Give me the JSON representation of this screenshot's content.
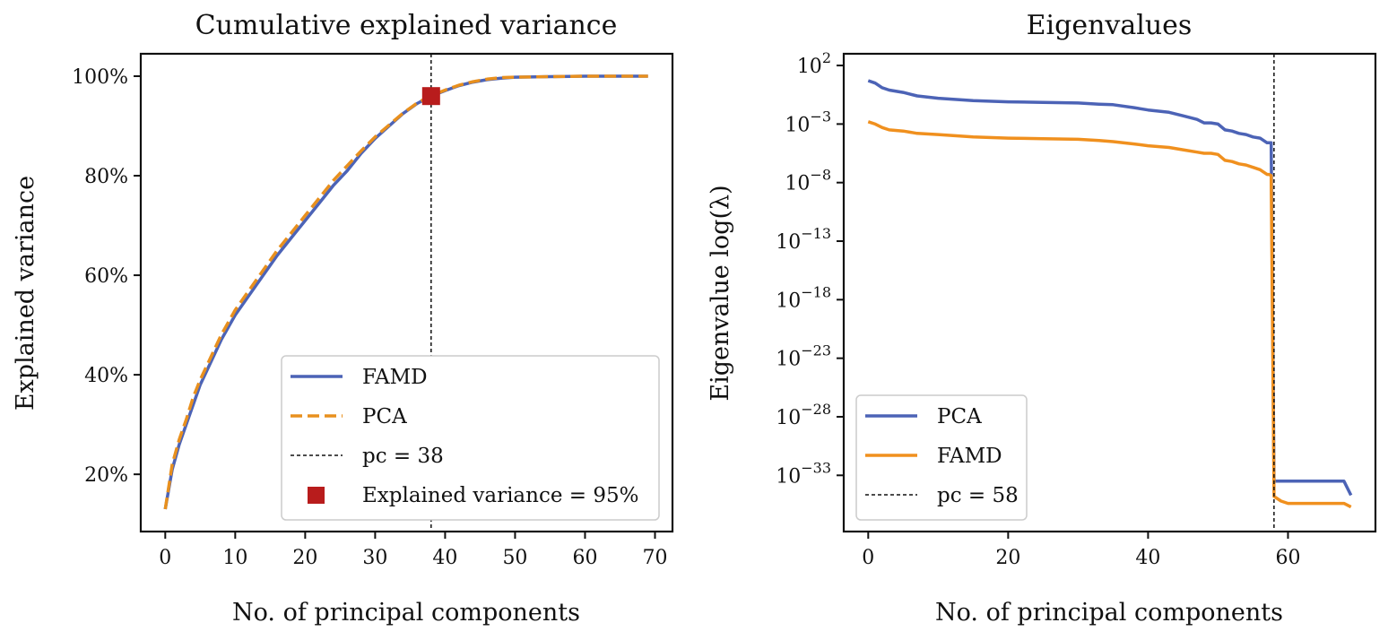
{
  "chart_data": [
    {
      "type": "line",
      "title": "Cumulative explained variance",
      "xlabel": "No. of principal components",
      "ylabel": "Explained variance",
      "xlim": [
        -3.5,
        72.5
      ],
      "ylim": [
        0.085,
        1.045
      ],
      "xticks": [
        0,
        10,
        20,
        30,
        40,
        50,
        60,
        70
      ],
      "xtick_labels": [
        "0",
        "10",
        "20",
        "30",
        "40",
        "50",
        "60",
        "70"
      ],
      "yticks": [
        0.2,
        0.4,
        0.6,
        0.8,
        1.0
      ],
      "ytick_labels": [
        "20%",
        "40%",
        "60%",
        "80%",
        "100%"
      ],
      "grid": false,
      "legend_position": "lower-right",
      "series": [
        {
          "name": "FAMD",
          "style": "solid",
          "color": "#4c63b6",
          "x": [
            0,
            1,
            2,
            3,
            4,
            5,
            6,
            8,
            10,
            12,
            14,
            16,
            18,
            20,
            22,
            24,
            26,
            28,
            30,
            32,
            34,
            36,
            38,
            40,
            42,
            44,
            46,
            48,
            50,
            55,
            60,
            65,
            69
          ],
          "y": [
            0.13,
            0.21,
            0.26,
            0.3,
            0.34,
            0.38,
            0.41,
            0.47,
            0.52,
            0.56,
            0.6,
            0.64,
            0.675,
            0.71,
            0.745,
            0.78,
            0.81,
            0.845,
            0.875,
            0.9,
            0.925,
            0.945,
            0.96,
            0.971,
            0.981,
            0.988,
            0.993,
            0.996,
            0.998,
            0.999,
            1.0,
            1.0,
            1.0
          ]
        },
        {
          "name": "PCA",
          "style": "dashed",
          "color": "#e8901e",
          "x": [
            0,
            1,
            2,
            3,
            4,
            5,
            6,
            8,
            10,
            12,
            14,
            16,
            18,
            20,
            22,
            24,
            26,
            28,
            30,
            32,
            34,
            36,
            38,
            40,
            42,
            44,
            46,
            48,
            50,
            55,
            60,
            65,
            69
          ],
          "y": [
            0.13,
            0.22,
            0.27,
            0.31,
            0.355,
            0.39,
            0.42,
            0.48,
            0.53,
            0.57,
            0.61,
            0.65,
            0.685,
            0.72,
            0.755,
            0.79,
            0.82,
            0.85,
            0.878,
            0.902,
            0.926,
            0.946,
            0.961,
            0.972,
            0.982,
            0.989,
            0.994,
            0.997,
            0.998,
            0.999,
            1.0,
            1.0,
            1.0
          ]
        }
      ],
      "vline": {
        "x": 38,
        "label": "pc = 38"
      },
      "marker": {
        "x": 38,
        "y": 0.96,
        "label": "Explained variance = 95%",
        "color": "#b81c1c"
      }
    },
    {
      "type": "line",
      "title": "Eigenvalues",
      "xlabel": "No. of principal components",
      "ylabel": "Eigenvalue log(λ)",
      "xlim": [
        -3.5,
        72.5
      ],
      "ylim_log10": [
        -37.8,
        3.0
      ],
      "xticks": [
        0,
        20,
        40,
        60
      ],
      "xtick_labels": [
        "0",
        "20",
        "40",
        "60"
      ],
      "yticks_log10": [
        2,
        -3,
        -8,
        -13,
        -18,
        -23,
        -28,
        -33
      ],
      "ytick_base": "10",
      "ytick_exponents": [
        "2",
        "−3",
        "−8",
        "−13",
        "−18",
        "−23",
        "−28",
        "−33"
      ],
      "grid": false,
      "legend_position": "lower-left",
      "series": [
        {
          "name": "PCA",
          "style": "solid",
          "color": "#4c63b6",
          "x": [
            0,
            1,
            2,
            3,
            5,
            7,
            10,
            15,
            20,
            25,
            30,
            33,
            35,
            38,
            40,
            43,
            45,
            47,
            48,
            49,
            50,
            51,
            52,
            53,
            54,
            55,
            56,
            57,
            57.3,
            57.6,
            58,
            59,
            60,
            65,
            68,
            69
          ],
          "y_log10": [
            0.7,
            0.5,
            0.1,
            -0.1,
            -0.3,
            -0.6,
            -0.8,
            -1.0,
            -1.1,
            -1.15,
            -1.2,
            -1.3,
            -1.35,
            -1.6,
            -1.8,
            -2.0,
            -2.3,
            -2.6,
            -2.9,
            -2.9,
            -3.0,
            -3.5,
            -3.6,
            -3.8,
            -3.9,
            -4.1,
            -4.2,
            -4.6,
            -4.6,
            -4.6,
            -33.5,
            -33.5,
            -33.5,
            -33.5,
            -33.5,
            -34.7
          ]
        },
        {
          "name": "FAMD",
          "style": "solid",
          "color": "#f0901e",
          "x": [
            0,
            1,
            2,
            3,
            5,
            7,
            10,
            15,
            20,
            25,
            30,
            33,
            35,
            38,
            40,
            43,
            45,
            47,
            48,
            49,
            50,
            51,
            52,
            53,
            54,
            55,
            56,
            57,
            57.3,
            57.6,
            58,
            59,
            60,
            65,
            68,
            69
          ],
          "y_log10": [
            -2.8,
            -3.0,
            -3.3,
            -3.5,
            -3.6,
            -3.8,
            -3.9,
            -4.1,
            -4.2,
            -4.25,
            -4.3,
            -4.4,
            -4.5,
            -4.7,
            -4.85,
            -5.0,
            -5.2,
            -5.4,
            -5.5,
            -5.5,
            -5.6,
            -6.1,
            -6.2,
            -6.4,
            -6.5,
            -6.7,
            -6.9,
            -7.3,
            -7.3,
            -7.4,
            -34.8,
            -35.2,
            -35.4,
            -35.4,
            -35.4,
            -35.7
          ]
        }
      ],
      "vline": {
        "x": 58,
        "label": "pc = 58"
      }
    }
  ]
}
